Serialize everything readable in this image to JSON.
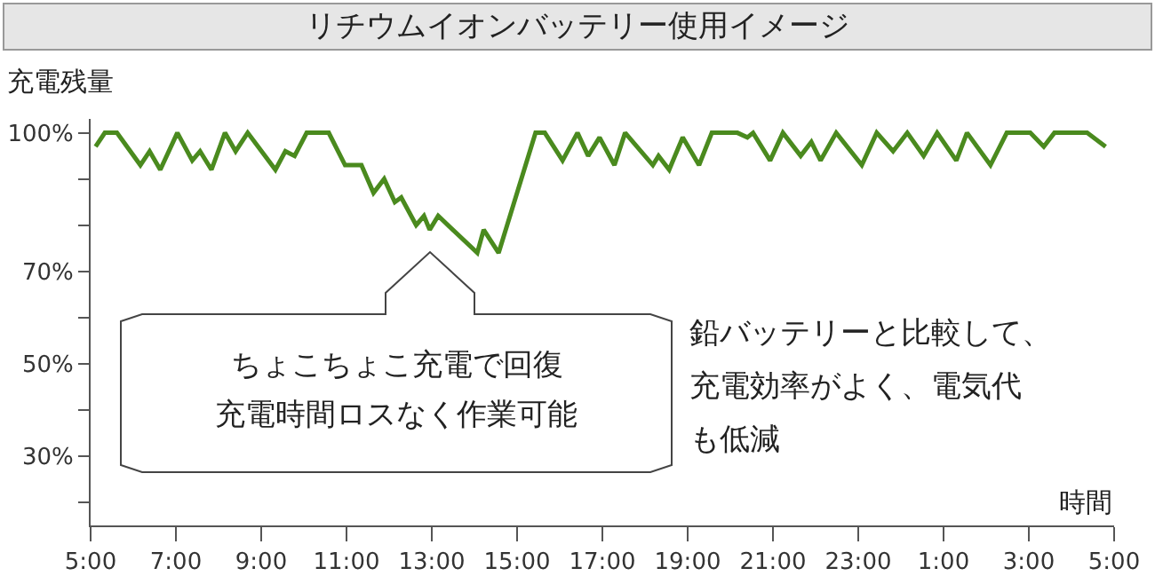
{
  "chart_data": {
    "type": "line",
    "title": "リチウムイオンバッテリー使用イメージ",
    "ylabel": "充電残量",
    "xlabel": "時間",
    "x": [
      "--01-01T05:07",
      "--01-01T05:20",
      "--01-01T05:37",
      "--01-01T06:10",
      "--01-01T06:23",
      "--01-01T06:38",
      "--01-01T07:02",
      "--01-01T07:23",
      "--01-01T07:34",
      "--01-01T07:50",
      "--01-01T08:09",
      "--01-01T08:24",
      "--01-01T08:41",
      "--01-01T09:20",
      "--01-01T09:34",
      "--01-01T09:47",
      "--01-01T10:04",
      "--01-01T10:35",
      "--01-01T10:58",
      "--01-01T11:21",
      "--01-01T11:38",
      "--01-01T11:53",
      "--01-01T12:08",
      "--01-01T12:17",
      "--01-01T12:38",
      "--01-01T12:49",
      "--01-01T12:57",
      "--01-01T13:09",
      "--01-01T14:04",
      "--01-01T14:13",
      "--01-01T14:34",
      "--01-01T15:26",
      "--01-01T15:39",
      "--01-01T16:04",
      "--01-01T16:25",
      "--01-01T16:40",
      "--01-01T16:56",
      "--01-01T17:17",
      "--01-01T17:32",
      "--01-01T18:11",
      "--01-01T18:19",
      "--01-01T18:34",
      "--01-01T18:53",
      "--01-01T19:16",
      "--01-01T19:34",
      "--01-01T20:10",
      "--01-01T20:24",
      "--01-01T20:32",
      "--01-01T20:56",
      "--01-01T21:14",
      "--01-01T21:39",
      "--01-01T21:54",
      "--01-01T22:07",
      "--01-01T22:29",
      "--01-01T23:05",
      "--01-01T23:26",
      "--01-01T23:49",
      "--01-02T00:09",
      "--01-02T00:32",
      "--01-02T00:51",
      "--01-02T01:18",
      "--01-02T01:33",
      "--01-02T02:06",
      "--01-02T02:29",
      "--01-02T03:02",
      "--01-02T03:21",
      "--01-02T03:36",
      "--01-02T04:22",
      "--01-02T04:48"
    ],
    "series": [
      {
        "color": "#4a8a1e",
        "values": [
          97,
          100,
          100,
          93,
          96,
          92,
          100,
          94,
          96,
          92,
          100,
          96,
          100,
          92,
          96,
          95,
          100,
          100,
          93,
          93,
          87,
          90,
          85,
          86,
          80,
          82,
          79,
          82,
          74,
          79,
          74,
          100,
          100,
          94,
          100,
          95,
          99,
          93,
          100,
          93,
          95,
          92,
          99,
          93,
          100,
          100,
          99,
          100,
          94,
          100,
          95,
          98,
          94,
          100,
          93,
          100,
          96,
          100,
          95,
          100,
          94,
          100,
          93,
          100,
          100,
          97,
          100,
          100,
          97
        ]
      }
    ],
    "xlim": [
      "--01-01T05:00",
      "--01-02T05:00"
    ],
    "ylim": [
      15,
      103
    ],
    "xticks": [
      {
        "value": "--01-01T05:00",
        "label": "5:00"
      },
      {
        "value": "--01-01T07:00",
        "label": "7:00"
      },
      {
        "value": "--01-01T09:00",
        "label": "9:00"
      },
      {
        "value": "--01-01T11:00",
        "label": "11:00"
      },
      {
        "value": "--01-01T13:00",
        "label": "13:00"
      },
      {
        "value": "--01-01T15:00",
        "label": "15:00"
      },
      {
        "value": "--01-01T17:00",
        "label": "17:00"
      },
      {
        "value": "--01-01T19:00",
        "label": "19:00"
      },
      {
        "value": "--01-01T21:00",
        "label": "21:00"
      },
      {
        "value": "--01-01T23:00",
        "label": "23:00"
      },
      {
        "value": "--01-02T01:00",
        "label": "1:00"
      },
      {
        "value": "--01-02T03:00",
        "label": "3:00"
      },
      {
        "value": "--01-02T05:00",
        "label": "5:00"
      }
    ],
    "yticks": [
      {
        "value": 100,
        "label": "100%"
      },
      {
        "value": 90,
        "label": null
      },
      {
        "value": 80,
        "label": null
      },
      {
        "value": 70,
        "label": "70%"
      },
      {
        "value": 60,
        "label": null
      },
      {
        "value": 50,
        "label": "50%"
      },
      {
        "value": 40,
        "label": null
      },
      {
        "value": 30,
        "label": "30%"
      },
      {
        "value": 20,
        "label": null
      }
    ],
    "annotations": [
      "ちょこちょこ充電で回復",
      "充電時間ロスなく作業可能",
      "鉛バッテリーと比較して、",
      "充電効率がよく、電気代",
      "も低減"
    ],
    "marker": "none",
    "line_style": "solid"
  }
}
